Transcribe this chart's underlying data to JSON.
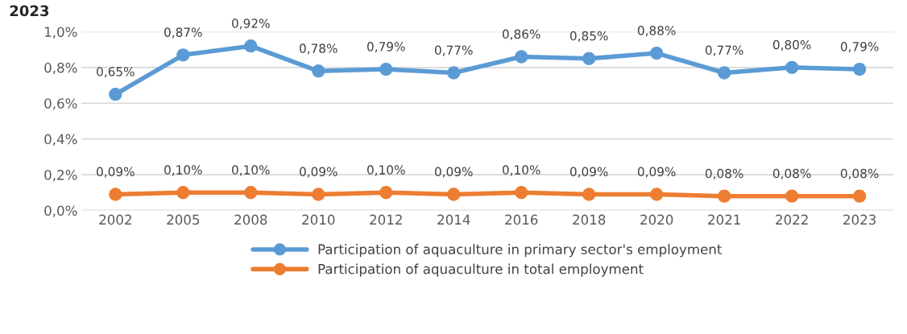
{
  "chart_data": {
    "type": "line",
    "title": "2023",
    "categories": [
      "2002",
      "2005",
      "2008",
      "2010",
      "2012",
      "2014",
      "2016",
      "2018",
      "2020",
      "2021",
      "2022",
      "2023"
    ],
    "series": [
      {
        "name": "Participation of aquaculture in primary sector's employment",
        "color": "#5b9bd5",
        "values": [
          0.65,
          0.87,
          0.92,
          0.78,
          0.79,
          0.77,
          0.86,
          0.85,
          0.88,
          0.77,
          0.8,
          0.79
        ],
        "value_labels": [
          "0,65%",
          "0,87%",
          "0,92%",
          "0,78%",
          "0,79%",
          "0,77%",
          "0,86%",
          "0,85%",
          "0,88%",
          "0,77%",
          "0,80%",
          "0,79%"
        ]
      },
      {
        "name": "Participation of aquaculture in total employment",
        "color": "#ed7d31",
        "values": [
          0.09,
          0.1,
          0.1,
          0.09,
          0.1,
          0.09,
          0.1,
          0.09,
          0.09,
          0.08,
          0.08,
          0.08
        ],
        "value_labels": [
          "0,09%",
          "0,10%",
          "0,10%",
          "0,09%",
          "0,10%",
          "0,09%",
          "0,10%",
          "0,09%",
          "0,09%",
          "0,08%",
          "0,08%",
          "0,08%"
        ]
      }
    ],
    "ylim": [
      0,
      1.0
    ],
    "yticks": [
      {
        "value": 0,
        "label": "0,0%"
      },
      {
        "value": 0.2,
        "label": "0,2%"
      },
      {
        "value": 0.4,
        "label": "0,4%"
      },
      {
        "value": 0.6,
        "label": "0,6%"
      },
      {
        "value": 0.8,
        "label": "0,8%"
      },
      {
        "value": 1.0,
        "label": "1,0%"
      }
    ],
    "grid": "y",
    "legend": "bottom",
    "marker": "circle",
    "line_style": "solid"
  }
}
